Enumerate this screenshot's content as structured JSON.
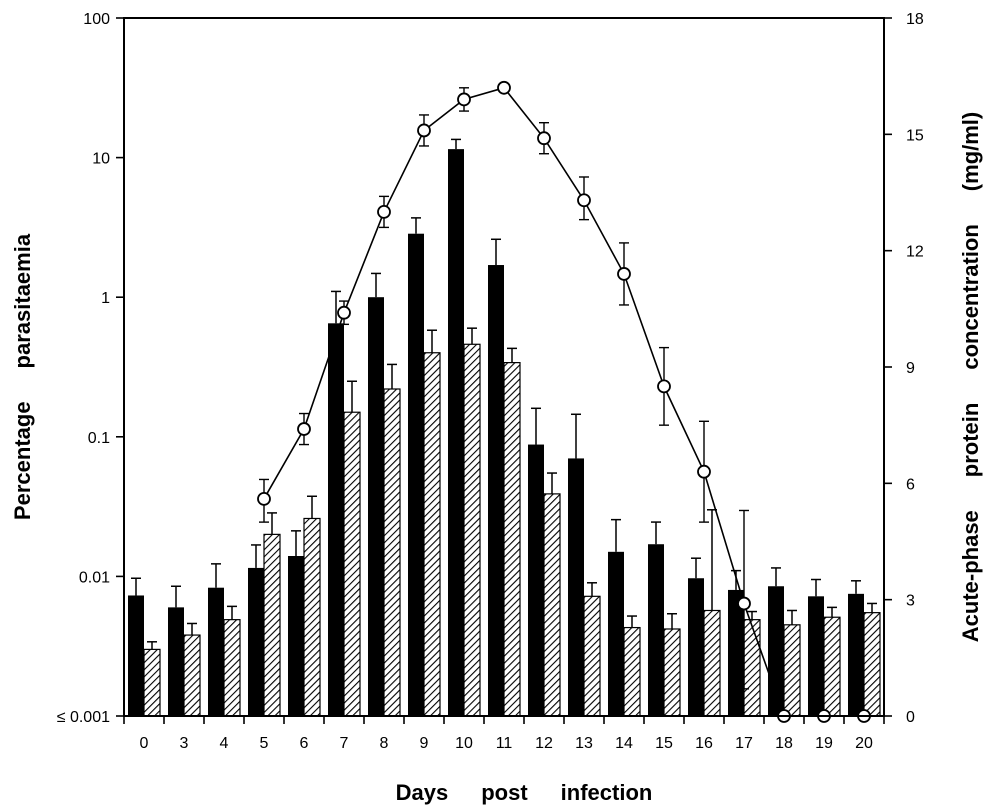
{
  "chart_data": {
    "type": "bar",
    "x_axis": {
      "label": "Days post infection",
      "categories": [
        "0",
        "3",
        "4",
        "5",
        "6",
        "7",
        "8",
        "9",
        "10",
        "11",
        "12",
        "13",
        "14",
        "15",
        "16",
        "17",
        "18",
        "19",
        "20"
      ]
    },
    "y_axis_left": {
      "label": "Percentage parasitaemia",
      "scale": "log",
      "range": [
        0.001,
        100
      ],
      "tick_values": [
        0.001,
        0.01,
        0.1,
        1,
        10,
        100
      ],
      "tick_labels": [
        "≤ 0.001",
        "0.01",
        "0.1",
        "1",
        "10",
        "100"
      ]
    },
    "y_axis_right": {
      "label": "Acute-phase protein concentration (mg/ml)",
      "scale": "linear",
      "range": [
        0,
        18
      ],
      "tick_values": [
        0,
        3,
        6,
        9,
        12,
        15,
        18
      ],
      "tick_labels": [
        "0",
        "3",
        "6",
        "9",
        "12",
        "15",
        "18"
      ]
    },
    "series": [
      {
        "style": "solid-black-bar",
        "axis": "left",
        "values": [
          0.0073,
          0.006,
          0.0083,
          0.0115,
          0.014,
          0.65,
          1.0,
          2.85,
          11.5,
          1.7,
          0.088,
          0.07,
          0.015,
          0.017,
          0.0097,
          0.008,
          0.0085,
          0.0072,
          0.0075
        ],
        "errors_upper": [
          0.0097,
          0.0085,
          0.0123,
          0.0168,
          0.0212,
          1.1,
          1.48,
          3.7,
          13.5,
          2.6,
          0.16,
          0.145,
          0.0255,
          0.0245,
          0.0135,
          0.011,
          0.0115,
          0.0095,
          0.0093
        ]
      },
      {
        "style": "hatched-bar",
        "axis": "left",
        "values": [
          0.003,
          0.0038,
          0.0049,
          0.02,
          0.026,
          0.15,
          0.22,
          0.4,
          0.46,
          0.34,
          0.039,
          0.0072,
          0.0043,
          0.0042,
          0.0057,
          0.0049,
          0.0045,
          0.0051,
          0.0055
        ],
        "errors_upper": [
          0.0034,
          0.0046,
          0.0061,
          0.0285,
          0.0375,
          0.25,
          0.33,
          0.58,
          0.6,
          0.43,
          0.055,
          0.009,
          0.0052,
          0.0054,
          0.03,
          0.0056,
          0.0057,
          0.006,
          0.0064
        ]
      },
      {
        "style": "line-open-circles",
        "axis": "right",
        "x_positions": [
          3.5,
          4.5,
          5.5,
          6.5,
          7.5,
          8.5,
          9.5,
          10.5,
          11.5,
          12.5,
          13.5,
          14.5,
          15.5,
          16.5,
          17.5,
          18.5
        ],
        "values": [
          5.6,
          7.4,
          10.4,
          13.0,
          15.1,
          15.9,
          16.2,
          14.9,
          13.3,
          11.4,
          8.5,
          6.3,
          2.9,
          0,
          0,
          0
        ],
        "errors_upper": [
          6.1,
          7.8,
          10.7,
          13.4,
          15.5,
          16.2,
          null,
          15.3,
          13.9,
          12.2,
          9.5,
          7.6,
          5.3,
          null,
          null,
          null
        ],
        "errors_lower": [
          5.0,
          7.0,
          10.1,
          12.6,
          14.7,
          15.6,
          null,
          14.5,
          12.8,
          10.6,
          7.5,
          5.0,
          0.7,
          null,
          null,
          null
        ]
      }
    ]
  }
}
